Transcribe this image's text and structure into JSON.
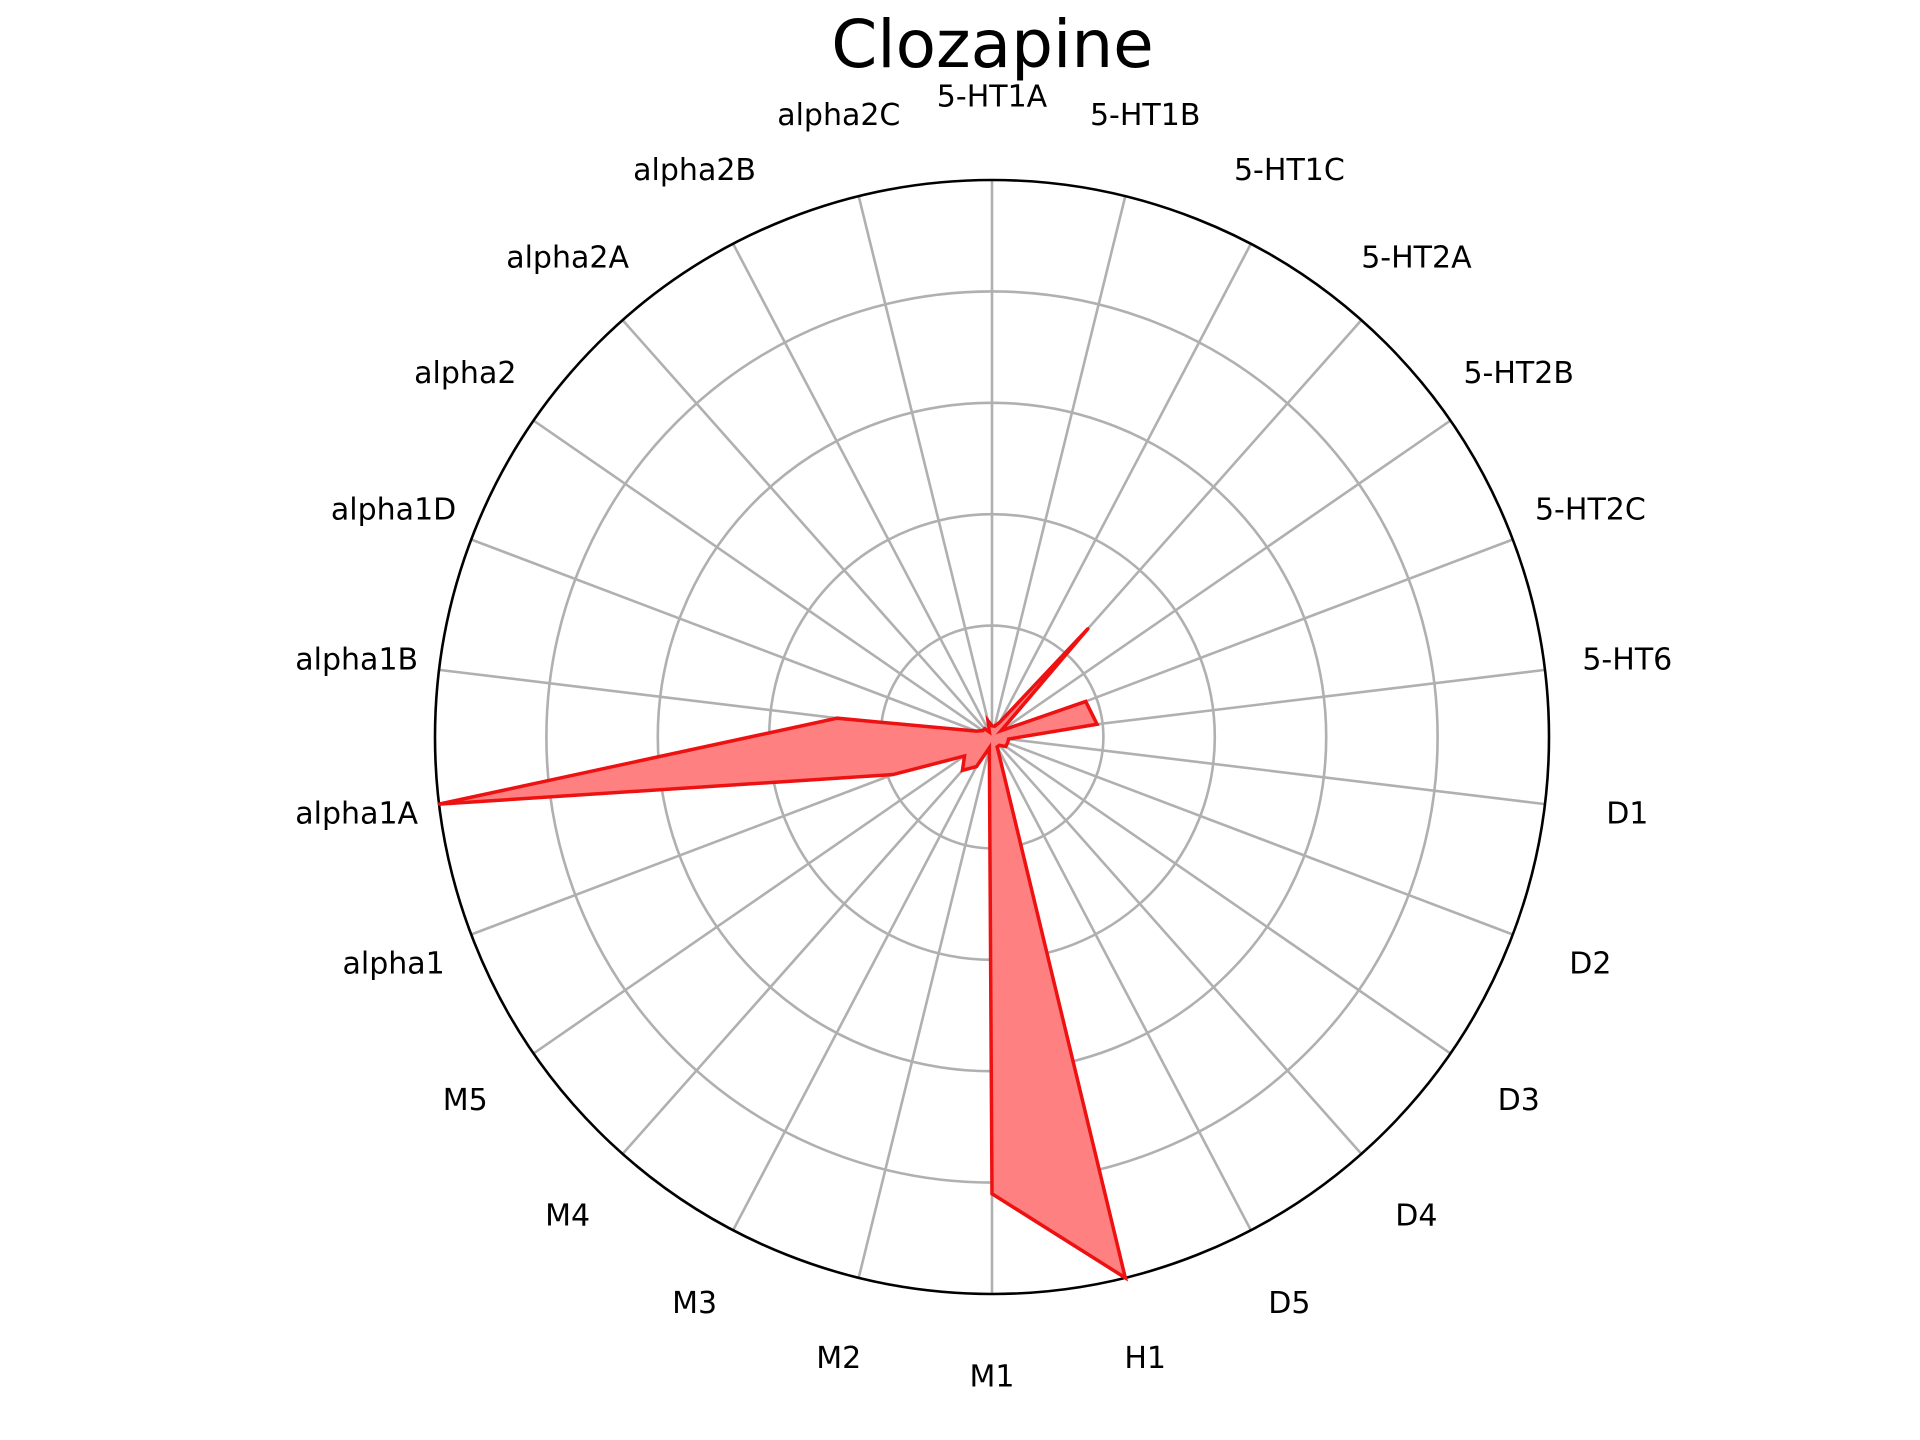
{
  "chart_data": {
    "type": "radar",
    "title": "Clozapine",
    "categories": [
      "5-HT1A",
      "5-HT1B",
      "5-HT1C",
      "5-HT2A",
      "5-HT2B",
      "5-HT2C",
      "5-HT6",
      "D1",
      "D2",
      "D3",
      "D4",
      "D5",
      "H1",
      "M1",
      "M2",
      "M3",
      "M4",
      "M5",
      "alpha1",
      "alpha1A",
      "alpha1B",
      "alpha1D",
      "alpha2",
      "alpha2A",
      "alpha2B",
      "alpha2C"
    ],
    "values": [
      0.02,
      0.02,
      0.03,
      0.26,
      0.02,
      0.18,
      0.19,
      0.03,
      0.03,
      0.03,
      0.02,
      0.02,
      1.0,
      0.82,
      0.02,
      0.06,
      0.08,
      0.06,
      0.19,
      1.0,
      0.28,
      0.03,
      0.02,
      0.02,
      0.01,
      0.03
    ],
    "rlim": [
      0,
      1
    ],
    "grid": true,
    "colors": {
      "line": "#ee1111",
      "fill": "#ff8080",
      "grid": "#b0b0b0",
      "frame": "#000000"
    }
  }
}
